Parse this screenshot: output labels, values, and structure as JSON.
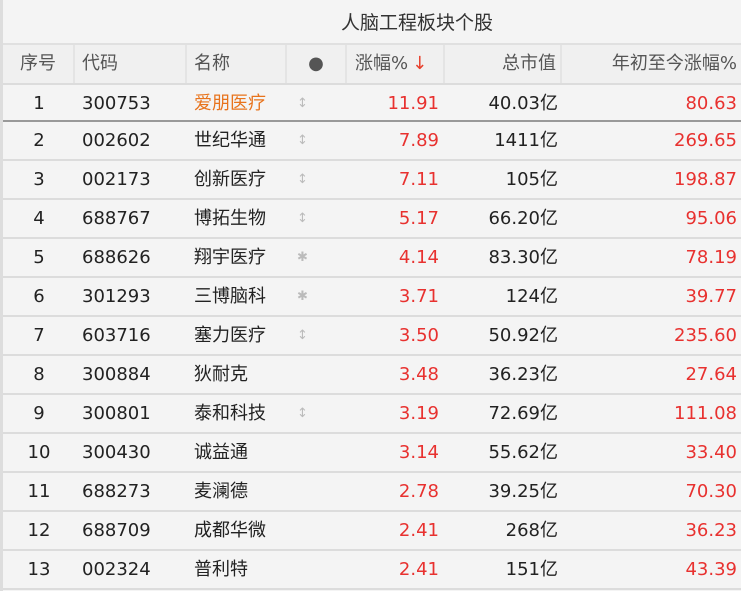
{
  "title": "人脑工程板块个股",
  "headers": {
    "idx": "序号",
    "code": "代码",
    "name": "名称",
    "dot": "●",
    "change": "涨幅%",
    "sort_arrow": "↓",
    "cap": "总市值",
    "ytd": "年初至今涨幅%"
  },
  "colors": {
    "up": "#e8312f",
    "highlight": "#e8731c"
  },
  "rows": [
    {
      "idx": "1",
      "code": "300753",
      "name": "爱朋医疗",
      "icon": "↕",
      "change": "11.91",
      "cap": "40.03亿",
      "ytd": "80.63"
    },
    {
      "idx": "2",
      "code": "002602",
      "name": "世纪华通",
      "icon": "↕",
      "change": "7.89",
      "cap": "1411亿",
      "ytd": "269.65"
    },
    {
      "idx": "3",
      "code": "002173",
      "name": "创新医疗",
      "icon": "↕",
      "change": "7.11",
      "cap": "105亿",
      "ytd": "198.87"
    },
    {
      "idx": "4",
      "code": "688767",
      "name": "博拓生物",
      "icon": "↕",
      "change": "5.17",
      "cap": "66.20亿",
      "ytd": "95.06"
    },
    {
      "idx": "5",
      "code": "688626",
      "name": "翔宇医疗",
      "icon": "✱",
      "change": "4.14",
      "cap": "83.30亿",
      "ytd": "78.19"
    },
    {
      "idx": "6",
      "code": "301293",
      "name": "三博脑科",
      "icon": "✱",
      "change": "3.71",
      "cap": "124亿",
      "ytd": "39.77"
    },
    {
      "idx": "7",
      "code": "603716",
      "name": "塞力医疗",
      "icon": "↕",
      "change": "3.50",
      "cap": "50.92亿",
      "ytd": "235.60"
    },
    {
      "idx": "8",
      "code": "300884",
      "name": "狄耐克",
      "icon": "",
      "change": "3.48",
      "cap": "36.23亿",
      "ytd": "27.64"
    },
    {
      "idx": "9",
      "code": "300801",
      "name": "泰和科技",
      "icon": "↕",
      "change": "3.19",
      "cap": "72.69亿",
      "ytd": "111.08"
    },
    {
      "idx": "10",
      "code": "300430",
      "name": "诚益通",
      "icon": "",
      "change": "3.14",
      "cap": "55.62亿",
      "ytd": "33.40"
    },
    {
      "idx": "11",
      "code": "688273",
      "name": "麦澜德",
      "icon": "",
      "change": "2.78",
      "cap": "39.25亿",
      "ytd": "70.30"
    },
    {
      "idx": "12",
      "code": "688709",
      "name": "成都华微",
      "icon": "",
      "change": "2.41",
      "cap": "268亿",
      "ytd": "36.23"
    },
    {
      "idx": "13",
      "code": "002324",
      "name": "普利特",
      "icon": "",
      "change": "2.41",
      "cap": "151亿",
      "ytd": "43.39"
    }
  ]
}
